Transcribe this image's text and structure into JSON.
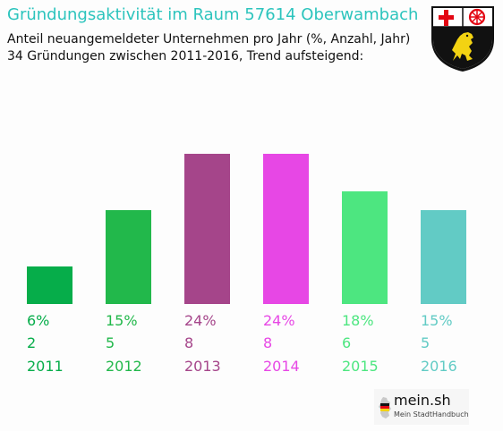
{
  "header": {
    "title": "Gründungsaktivität im Raum 57614 Oberwambach",
    "subtitle_line1": "Anteil neuangemeldeter Unternehmen pro Jahr (%, Anzahl, Jahr)",
    "subtitle_line2": "34 Gründungen zwischen 2011-2016, Trend aufsteigend:"
  },
  "colors": {
    "title": "#2cc4bd"
  },
  "crest": {
    "icon": "rhineland-palatinate-coat-of-arms-icon"
  },
  "logo": {
    "name": "mein.sh",
    "tagline": "Mein StadtHandbuch",
    "icon": "germany-map-icon"
  },
  "chart_data": {
    "type": "bar",
    "categories": [
      "2011",
      "2012",
      "2013",
      "2014",
      "2015",
      "2016"
    ],
    "values": [
      6,
      15,
      24,
      24,
      18,
      15
    ],
    "percent_labels": [
      "6%",
      "15%",
      "24%",
      "24%",
      "18%",
      "15%"
    ],
    "counts": [
      2,
      5,
      8,
      8,
      6,
      5
    ],
    "colors": [
      "#06ad4a",
      "#22b84b",
      "#a5458a",
      "#e747e5",
      "#4de680",
      "#62cbc5"
    ],
    "ylim": [
      0,
      24
    ],
    "grid": false,
    "legend": "none"
  }
}
